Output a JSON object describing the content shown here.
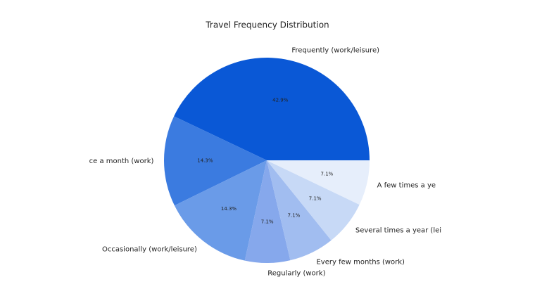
{
  "chart_data": {
    "type": "pie",
    "title": "Travel Frequency Distribution",
    "categories": [
      "Frequently (work/leisure)",
      "ce a month (work)",
      "Occasionally (work/leisure)",
      "Regularly (work)",
      "Every few months (work)",
      "Several times a year (lei",
      "A few times a ye"
    ],
    "values": [
      42.9,
      14.3,
      14.3,
      7.1,
      7.1,
      7.1,
      7.1
    ],
    "value_labels": [
      "42.9%",
      "14.3%",
      "14.3%",
      "7.1%",
      "7.1%",
      "7.1%",
      "7.1%"
    ],
    "colors": [
      "#0a58d6",
      "#3b7be0",
      "#6a9be8",
      "#86a8ec",
      "#a1bdf0",
      "#c7d9f6",
      "#e6eefb"
    ]
  }
}
